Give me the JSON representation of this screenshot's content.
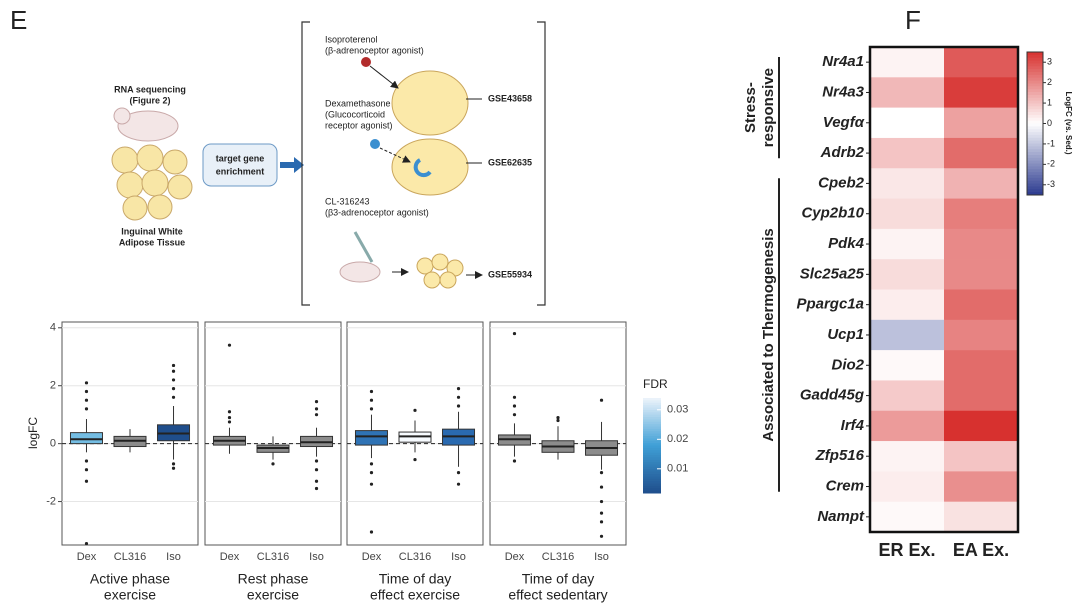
{
  "panel_letters": [
    "E",
    "F"
  ],
  "diagram": {
    "rna_lines": [
      "RNA sequencing",
      "(Figure 2)"
    ],
    "tissue_lines": [
      "Inguinal White",
      "Adipose Tissue"
    ],
    "enrichment_lines": [
      "target gene",
      "enrichment"
    ],
    "treatments": [
      {
        "lines": [
          "Isoproterenol",
          "(β-adrenoceptor agonist)"
        ],
        "dataset": "GSE43658"
      },
      {
        "lines": [
          "Dexamethasone",
          "(Glucocorticoid",
          "receptor agonist)"
        ],
        "dataset": "GSE62635"
      },
      {
        "lines": [
          "CL-316243",
          "(β3-adrenoceptor agonist)"
        ],
        "dataset": "GSE55934"
      }
    ]
  },
  "chart_data": [
    {
      "type": "box",
      "y_label": "logFC",
      "ylim": [
        -3.5,
        4.2
      ],
      "yticks": [
        -2,
        0,
        2,
        4
      ],
      "categories": [
        "Dex",
        "CL316",
        "Iso"
      ],
      "facets": [
        {
          "title_lines": [
            "Active phase",
            "exercise"
          ],
          "boxes": [
            {
              "q1": 0.0,
              "median": 0.15,
              "q3": 0.38,
              "whisker_low": -0.3,
              "whisker_high": 0.85,
              "outliers": [
                2.1,
                1.8,
                1.5,
                1.2,
                -0.6,
                -0.9,
                -1.3,
                -3.45
              ],
              "color": "#74bde3"
            },
            {
              "q1": -0.1,
              "median": 0.1,
              "q3": 0.25,
              "whisker_low": -0.3,
              "whisker_high": 0.5,
              "outliers": [],
              "color": "#8c8c8c"
            },
            {
              "q1": 0.1,
              "median": 0.35,
              "q3": 0.65,
              "whisker_low": -0.55,
              "whisker_high": 1.3,
              "outliers": [
                2.7,
                2.5,
                2.2,
                1.9,
                1.6,
                -0.7,
                -0.85
              ],
              "color": "#1f4e8c"
            }
          ]
        },
        {
          "title_lines": [
            "Rest phase",
            "exercise"
          ],
          "boxes": [
            {
              "q1": -0.05,
              "median": 0.1,
              "q3": 0.25,
              "whisker_low": -0.35,
              "whisker_high": 0.55,
              "outliers": [
                3.4,
                1.1,
                0.9,
                0.75
              ],
              "color": "#8c8c8c"
            },
            {
              "q1": -0.3,
              "median": -0.15,
              "q3": -0.05,
              "whisker_low": -0.55,
              "whisker_high": 0.25,
              "outliers": [
                -0.7
              ],
              "color": "#8c8c8c"
            },
            {
              "q1": -0.1,
              "median": 0.05,
              "q3": 0.25,
              "whisker_low": -0.45,
              "whisker_high": 0.55,
              "outliers": [
                1.45,
                1.2,
                1.0,
                -0.6,
                -0.9,
                -1.3,
                -1.55
              ],
              "color": "#8c8c8c"
            }
          ]
        },
        {
          "title_lines": [
            "Time of day",
            "effect exercise"
          ],
          "boxes": [
            {
              "q1": -0.05,
              "median": 0.25,
              "q3": 0.45,
              "whisker_low": -0.5,
              "whisker_high": 1.0,
              "outliers": [
                1.8,
                1.5,
                1.2,
                -0.7,
                -1.0,
                -1.4,
                -3.05
              ],
              "color": "#2f73b5"
            },
            {
              "q1": 0.05,
              "median": 0.25,
              "q3": 0.4,
              "whisker_low": -0.3,
              "whisker_high": 0.8,
              "outliers": [
                1.15,
                -0.55
              ],
              "color": "#f7fbff"
            },
            {
              "q1": -0.05,
              "median": 0.25,
              "q3": 0.5,
              "whisker_low": -0.8,
              "whisker_high": 1.1,
              "outliers": [
                1.9,
                1.6,
                1.3,
                -1.0,
                -1.4
              ],
              "color": "#2a6ab0"
            }
          ]
        },
        {
          "title_lines": [
            "Time of day",
            "effect sedentary"
          ],
          "boxes": [
            {
              "q1": -0.05,
              "median": 0.15,
              "q3": 0.3,
              "whisker_low": -0.45,
              "whisker_high": 0.7,
              "outliers": [
                3.8,
                1.6,
                1.3,
                1.0,
                -0.6
              ],
              "color": "#8c8c8c"
            },
            {
              "q1": -0.3,
              "median": -0.1,
              "q3": 0.1,
              "whisker_low": -0.55,
              "whisker_high": 0.6,
              "outliers": [
                0.9,
                0.8
              ],
              "color": "#8c8c8c"
            },
            {
              "q1": -0.4,
              "median": -0.15,
              "q3": 0.1,
              "whisker_low": -0.9,
              "whisker_high": 0.75,
              "outliers": [
                1.5,
                -1.0,
                -1.5,
                -2.0,
                -2.4,
                -2.7,
                -3.2
              ],
              "color": "#8c8c8c"
            }
          ]
        }
      ],
      "colorbar": {
        "title": "FDR",
        "lim": [
          0.0018,
          0.034
        ],
        "ticks": [
          0.01,
          0.02,
          0.03
        ],
        "colors": [
          "#1f4e8c",
          "#3f9fd6",
          "#eef4fb"
        ]
      }
    },
    {
      "type": "heatmap",
      "columns": [
        "ER Ex.",
        "EA Ex."
      ],
      "groups": [
        {
          "label_lines": [
            "Stress-",
            "responsive"
          ],
          "genes": [
            "Nr4a1",
            "Nr4a3",
            "Vegfα",
            "Adrb2"
          ],
          "values": [
            [
              0.2,
              2.8
            ],
            [
              1.2,
              3.3
            ],
            [
              0.0,
              1.6
            ],
            [
              1.0,
              2.5
            ]
          ]
        },
        {
          "label_lines": [
            "Associated to Thermogenesis"
          ],
          "genes": [
            "Cpeb2",
            "Cyp2b10",
            "Pdk4",
            "Slc25a25",
            "Ppargc1a",
            "Ucp1",
            "Dio2",
            "Gadd45g",
            "Irf4",
            "Zfp516",
            "Crem"
          ],
          "values": [
            [
              0.4,
              1.3
            ],
            [
              0.6,
              2.2
            ],
            [
              0.2,
              2.0
            ],
            [
              0.6,
              2.0
            ],
            [
              0.3,
              2.5
            ],
            [
              -1.1,
              2.1
            ],
            [
              0.1,
              2.5
            ],
            [
              0.9,
              2.5
            ],
            [
              1.7,
              3.5
            ],
            [
              0.2,
              1.0
            ],
            [
              0.3,
              1.9
            ]
          ]
        },
        {
          "label_lines": [],
          "genes": [
            "Nampt"
          ],
          "values": [
            [
              0.1,
              0.5
            ]
          ]
        }
      ],
      "colorbar": {
        "title": "LogFC (vs. Sed.)",
        "lim": [
          -3.5,
          3.5
        ],
        "ticks": [
          3,
          2,
          1,
          0,
          -1,
          -2,
          -3
        ],
        "colors": [
          "#2b3a8f",
          "#ffffff",
          "#d7312f"
        ]
      }
    }
  ]
}
